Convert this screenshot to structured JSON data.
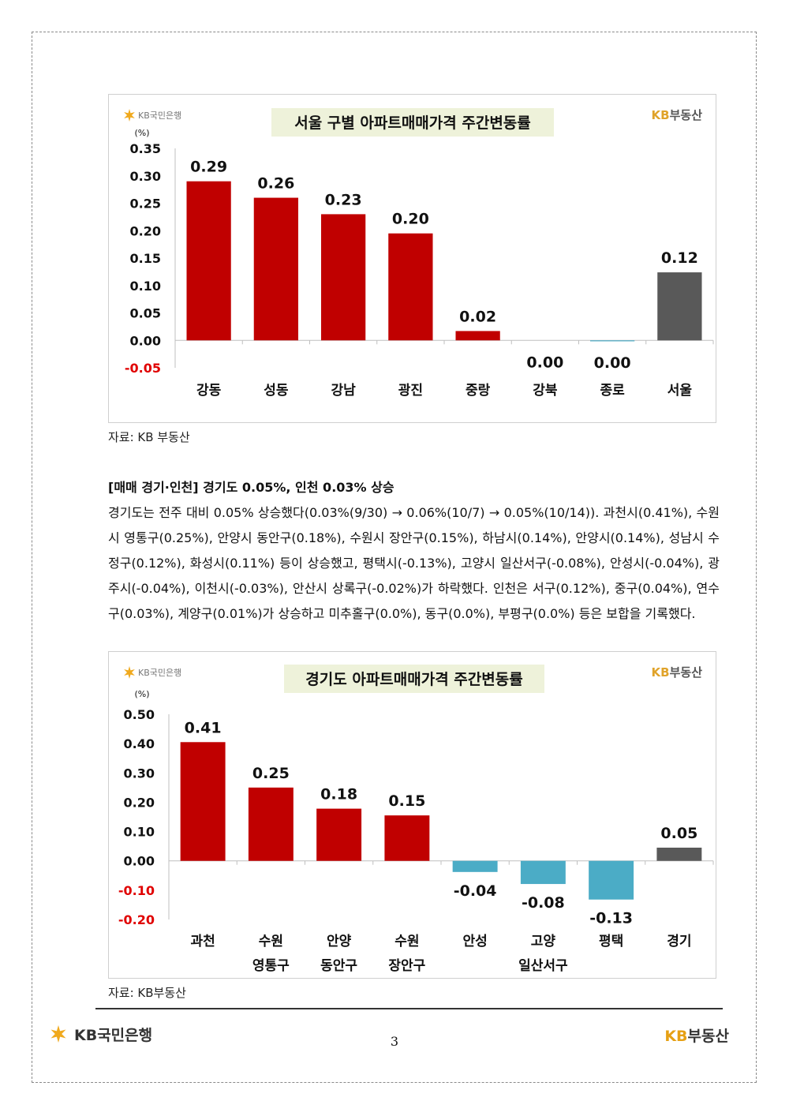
{
  "logos": {
    "kb_bank": "KB국민은행",
    "kb_realestate_kb": "KB",
    "kb_realestate_text": "부동산",
    "star_color": "#f0a91d",
    "brand_gold": "#e0a32a",
    "brand_gray": "#555555"
  },
  "charts": [
    {
      "title": "서울 구별 아파트매매가격 주간변동률",
      "unit": "(%)",
      "source": "자료: KB 부동산",
      "title_bg": "#eef2da"
    },
    {
      "title": "경기도 아파트매매가격 주간변동률",
      "unit": "(%)",
      "source": "자료: KB부동산",
      "title_bg": "#eef2da"
    }
  ],
  "chart_data": [
    {
      "type": "bar",
      "title": "서울 구별 아파트매매가격 주간변동률",
      "ylabel": "(%)",
      "ylim": [
        -0.05,
        0.35
      ],
      "yticks": [
        "0.35",
        "0.30",
        "0.25",
        "0.20",
        "0.15",
        "0.10",
        "0.05",
        "0.00",
        "-0.05"
      ],
      "categories": [
        [
          "강동"
        ],
        [
          "성동"
        ],
        [
          "강남"
        ],
        [
          "광진"
        ],
        [
          "중랑"
        ],
        [
          "강북"
        ],
        [
          "종로"
        ],
        [
          "서울"
        ]
      ],
      "values": [
        0.29,
        0.26,
        0.23,
        0.195,
        0.017,
        0.0,
        -0.001,
        0.124
      ],
      "labels": [
        "0.29",
        "0.26",
        "0.23",
        "0.20",
        "0.02",
        "0.00",
        "0.00",
        "0.12"
      ],
      "colors": [
        "#c00000",
        "#c00000",
        "#c00000",
        "#c00000",
        "#c00000",
        "#c00000",
        "#4bacc6",
        "#595959"
      ],
      "grid": false
    },
    {
      "type": "bar",
      "title": "경기도 아파트매매가격 주간변동률",
      "ylabel": "(%)",
      "ylim": [
        -0.2,
        0.5
      ],
      "yticks": [
        "0.50",
        "0.40",
        "0.30",
        "0.20",
        "0.10",
        "0.00",
        "-0.10",
        "-0.20"
      ],
      "categories": [
        [
          "과천"
        ],
        [
          "수원",
          "영통구"
        ],
        [
          "안양",
          "동안구"
        ],
        [
          "수원",
          "장안구"
        ],
        [
          "안성"
        ],
        [
          "고양",
          "일산서구"
        ],
        [
          "평택"
        ],
        [
          "경기"
        ]
      ],
      "values": [
        0.405,
        0.25,
        0.178,
        0.155,
        -0.038,
        -0.079,
        -0.132,
        0.045
      ],
      "labels": [
        "0.41",
        "0.25",
        "0.18",
        "0.15",
        "-0.04",
        "-0.08",
        "-0.13",
        "0.05"
      ],
      "colors": [
        "#c00000",
        "#c00000",
        "#c00000",
        "#c00000",
        "#4bacc6",
        "#4bacc6",
        "#4bacc6",
        "#595959"
      ],
      "grid": false
    }
  ],
  "section": {
    "heading": "[매매 경기·인천] 경기도 0.05%, 인천 0.03% 상승",
    "paragraph": "경기도는 전주 대비 0.05% 상승했다(0.03%(9/30) → 0.06%(10/7) → 0.05%(10/14)). 과천시(0.41%), 수원시 영통구(0.25%), 안양시 동안구(0.18%), 수원시 장안구(0.15%), 하남시(0.14%), 안양시(0.14%), 성남시 수정구(0.12%), 화성시(0.11%) 등이 상승했고, 평택시(-0.13%), 고양시 일산서구(-0.08%), 안성시(-0.04%), 광주시(-0.04%), 이천시(-0.03%), 안산시 상록구(-0.02%)가 하락했다. 인천은 서구(0.12%), 중구(0.04%), 연수구(0.03%), 계양구(0.01%)가 상승하고 미추홀구(0.0%), 동구(0.0%), 부평구(0.0%) 등은 보합을 기록했다."
  },
  "footer": {
    "page_number": "3"
  },
  "colors": {
    "negative_tick": "#e00000",
    "axis": "#bfbfbf"
  }
}
